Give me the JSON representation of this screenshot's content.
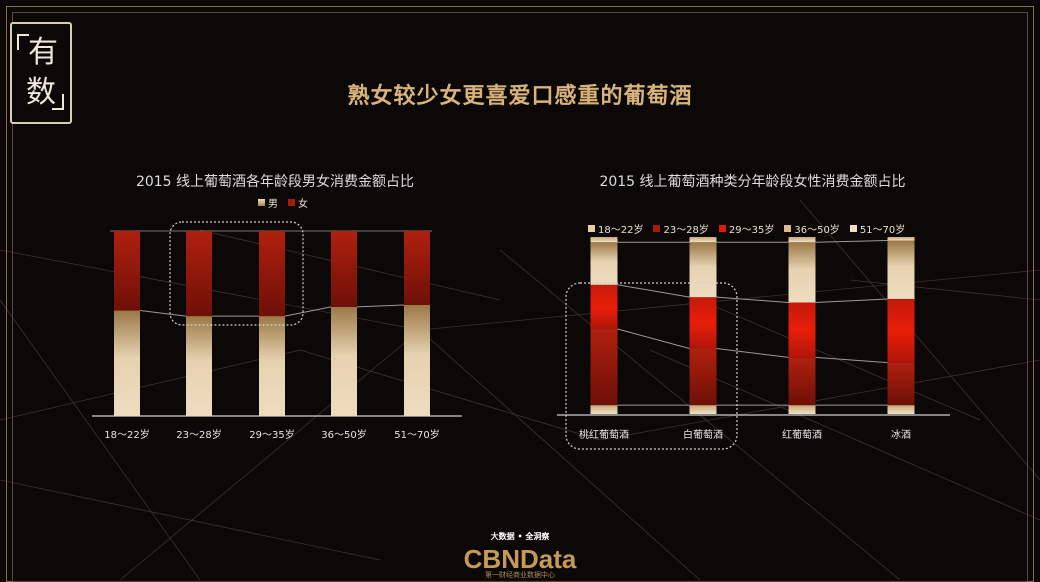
{
  "page": {
    "logo_chars": [
      "有",
      "数"
    ],
    "title": "熟女较少女更喜爱口感重的葡萄酒",
    "footer_tagline": "大数据 • 全洞察",
    "brand": "CBNData",
    "brand_sub": "第一财经商业数据中心"
  },
  "colors": {
    "gold_light": "#efdcc0",
    "gold_dark": "#a8844f",
    "red_dark": "#7a1208",
    "red_mid": "#a51c0c",
    "red_bright": "#e01a08",
    "cream": "#e3cfa6",
    "title_gold": "#d9b47a"
  },
  "chart_data": [
    {
      "type": "bar",
      "stacked": true,
      "percent": true,
      "title": "2015 线上葡萄酒各年龄段男女消费金额占比",
      "categories": [
        "18～22岁",
        "23～28岁",
        "29～35岁",
        "36～50岁",
        "51～70岁"
      ],
      "series": [
        {
          "name": "男",
          "values": [
            57,
            54,
            54,
            59,
            60
          ]
        },
        {
          "name": "女",
          "values": [
            43,
            46,
            46,
            41,
            40
          ]
        }
      ],
      "ylim": [
        0,
        100
      ],
      "legend": "top-center",
      "highlight_categories": [
        "23～28岁",
        "29～35岁"
      ]
    },
    {
      "type": "bar",
      "stacked": true,
      "percent": true,
      "title": "2015 线上葡萄酒种类分年龄段女性消费金额占比",
      "categories": [
        "桃红葡萄酒",
        "白葡萄酒",
        "红葡萄酒",
        "冰酒"
      ],
      "series": [
        {
          "name": "18～22岁",
          "values": [
            5,
            5,
            5,
            5
          ]
        },
        {
          "name": "23～28岁",
          "values": [
            43,
            32,
            27,
            24
          ]
        },
        {
          "name": "29～35岁",
          "values": [
            25,
            29,
            31,
            36
          ]
        },
        {
          "name": "36～50岁",
          "values": [
            24,
            31,
            34,
            33
          ]
        },
        {
          "name": "51～70岁",
          "values": [
            3,
            3,
            3,
            2
          ]
        }
      ],
      "ylim": [
        0,
        100
      ],
      "legend": "top",
      "highlight_categories": [
        "桃红葡萄酒",
        "白葡萄酒"
      ]
    }
  ]
}
